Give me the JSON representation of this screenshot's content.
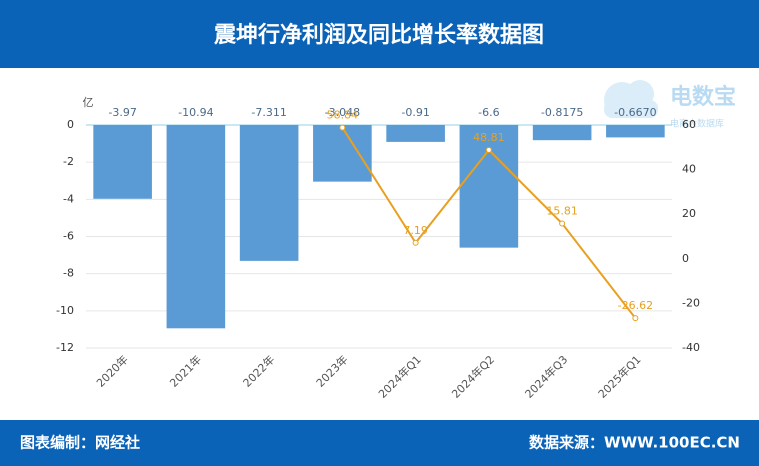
{
  "chart_data": {
    "type": "bar",
    "title": "震坤行净利润及同比增长率数据图",
    "y_label": "亿",
    "footer_left": "图表编制：网经社",
    "footer_right": "数据来源：WWW.100EC.CN",
    "watermark": [
      "电数宝",
      "电商大数据库"
    ],
    "categories": [
      "2020年",
      "2021年",
      "2022年",
      "2023年",
      "2024年Q1",
      "2024年Q2",
      "2024年Q3",
      "2025年Q1"
    ],
    "series": [
      {
        "type": "bar",
        "color": "#5b9bd5",
        "values": [
          -3.97,
          -10.94,
          -7.311,
          -3.048,
          -0.91,
          -6.6,
          -0.8175,
          -0.667
        ],
        "value_labels": [
          "-3.97",
          "-10.94",
          "-7.311",
          "-3.048",
          "-0.91",
          "-6.6",
          "-0.8175",
          "-0.6670"
        ]
      },
      {
        "type": "line",
        "axis": "y2",
        "color": "#e8a020",
        "values": [
          null,
          null,
          null,
          58.84,
          7.19,
          48.81,
          15.81,
          -26.62
        ]
      }
    ],
    "ylim": [
      -12,
      0
    ],
    "yticks": [
      0,
      -2,
      -4,
      -6,
      -8,
      -10,
      -12
    ],
    "y2lim": [
      -40,
      60
    ],
    "y2ticks": [
      60,
      40,
      20,
      0,
      -20,
      -40
    ],
    "grid": true
  }
}
